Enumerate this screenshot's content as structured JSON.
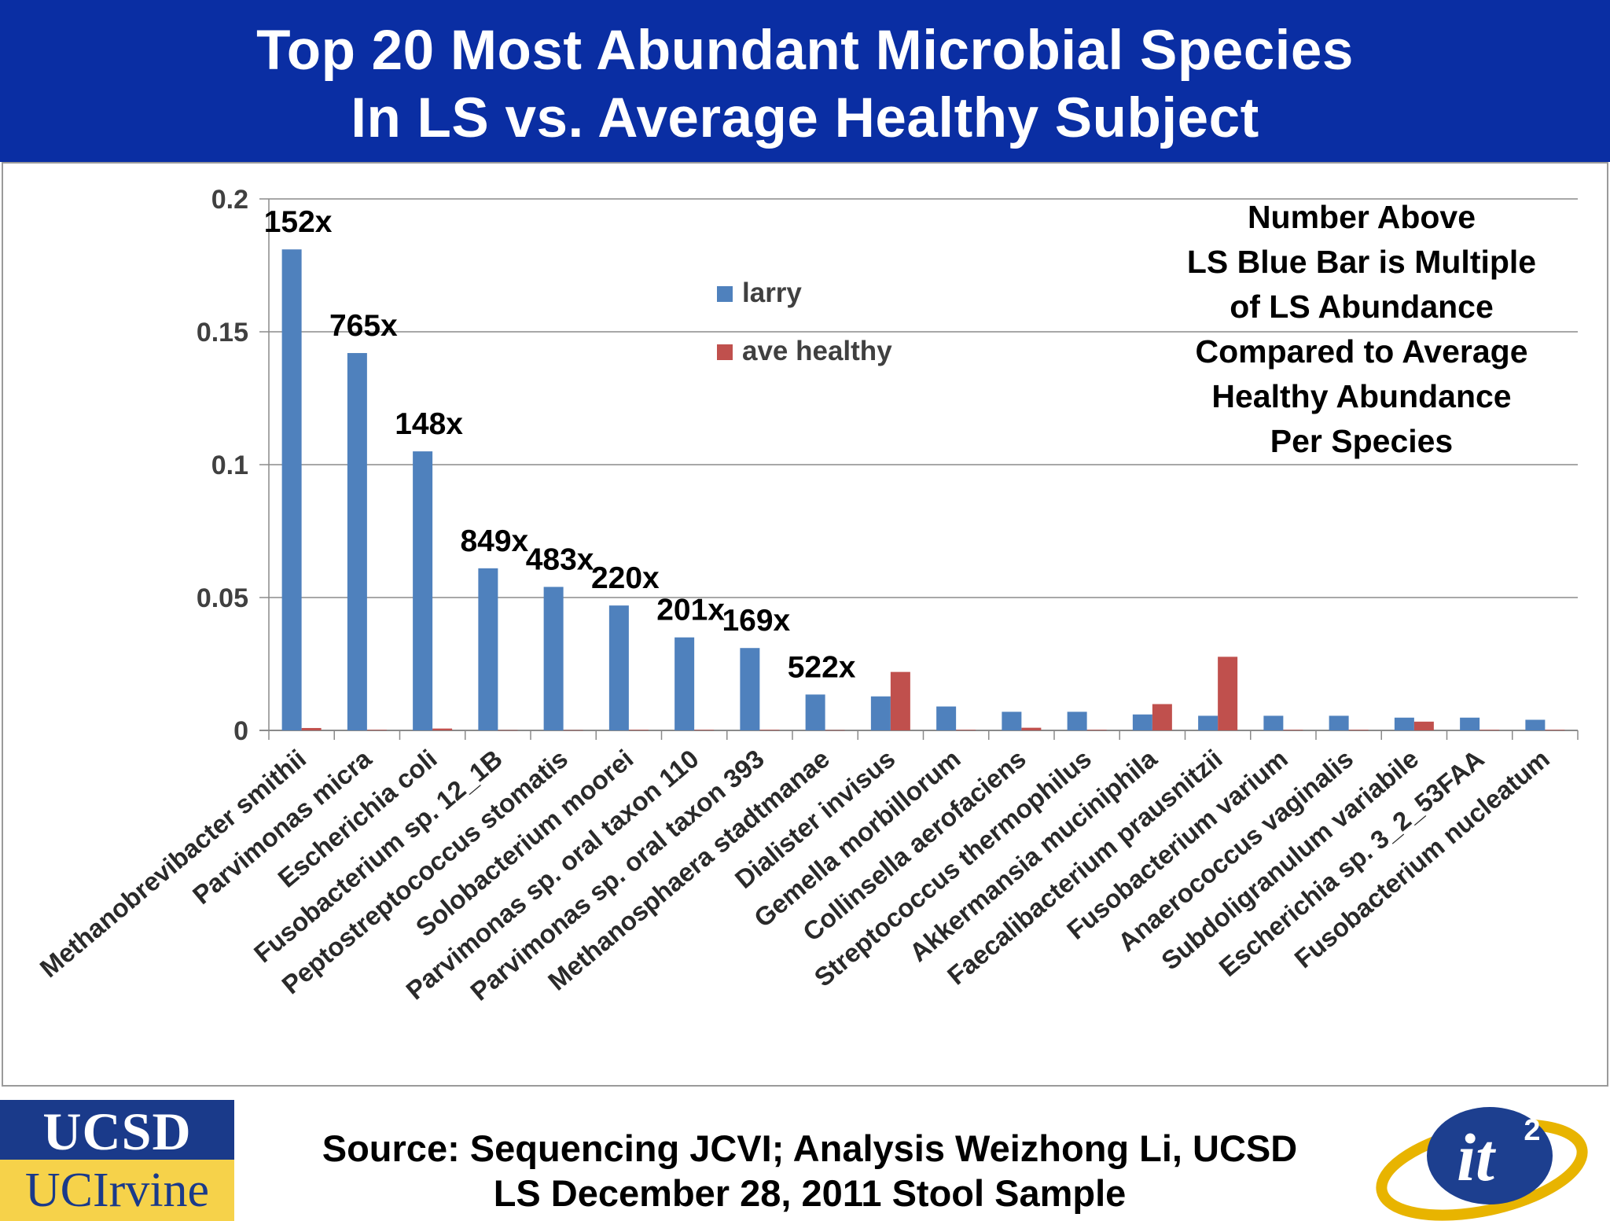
{
  "header": {
    "title_line1": "Top 20 Most Abundant Microbial Species",
    "title_line2": "In LS vs. Average Healthy Subject"
  },
  "colors": {
    "header_band": "#0a2ea3",
    "larry": "#4f81bd",
    "ave_healthy": "#c0504d",
    "ucsd_blue": "#1a3a8a",
    "ucirvine_gold": "#f6d24a"
  },
  "chart_data": {
    "type": "bar",
    "categories": [
      "Methanobrevibacter smithii",
      "Parvimonas micra",
      "Escherichia coli",
      "Fusobacterium sp. 12_1B",
      "Peptostreptococcus stomatis",
      "Solobacterium moorei",
      "Parvimonas sp. oral taxon 110",
      "Parvimonas sp. oral taxon 393",
      "Methanosphaera stadtmanae",
      "Dialister invisus",
      "Gemella morbillorum",
      "Collinsella aerofaciens",
      "Streptococcus thermophilus",
      "Akkermansia muciniphila",
      "Faecalibacterium prausnitzii",
      "Fusobacterium varium",
      "Anaerococcus vaginalis",
      "Subdoligranulum variabile",
      "Escherichia sp. 3_2_53FAA",
      "Fusobacterium nucleatum"
    ],
    "series": [
      {
        "name": "larry",
        "values": [
          0.181,
          0.142,
          0.105,
          0.061,
          0.054,
          0.047,
          0.035,
          0.031,
          0.0135,
          0.0128,
          0.009,
          0.007,
          0.007,
          0.006,
          0.0055,
          0.0055,
          0.0055,
          0.0048,
          0.0048,
          0.004
        ]
      },
      {
        "name": "ave healthy",
        "values": [
          0.0009,
          0.0002,
          0.0007,
          0.0001,
          0.0001,
          0.0002,
          0.0002,
          0.0002,
          0.0001,
          0.022,
          0.0002,
          0.001,
          0.0002,
          0.0099,
          0.0277,
          0.0002,
          0.0002,
          0.0033,
          0.0002,
          0.0002
        ]
      }
    ],
    "multiplier_labels": [
      "152x",
      "765x",
      "148x",
      "849x",
      "483x",
      "220x",
      "201x",
      "169x",
      "522x"
    ],
    "y_ticks": [
      "0",
      "0.05",
      "0.1",
      "0.15",
      "0.2"
    ],
    "ylim": [
      0,
      0.2
    ],
    "grid": true,
    "legend_position": "top-center",
    "annotation_lines": [
      "Number Above",
      "LS Blue Bar is Multiple",
      "of LS Abundance",
      "Compared to Average",
      "Healthy Abundance",
      "Per Species"
    ]
  },
  "footer": {
    "source_line1": "Source: Sequencing JCVI; Analysis Weizhong Li, UCSD",
    "source_line2": "LS December 28, 2011 Stool Sample"
  },
  "logos": {
    "ucsd": "UCSD",
    "ucirvine": "UCIrvine",
    "it2": "it",
    "it2_superscript": "2"
  }
}
